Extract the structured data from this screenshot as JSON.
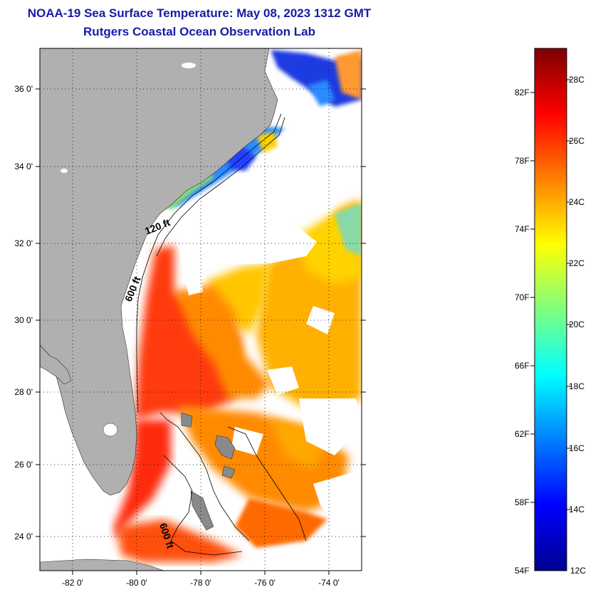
{
  "header": {
    "title": "NOAA-19 Sea Surface Temperature:  May 08, 2023 1312 GMT",
    "subtitle": "Rutgers Coastal Ocean Observation Lab"
  },
  "map": {
    "lon_range": [
      -83,
      -73
    ],
    "lat_range": [
      23,
      37
    ],
    "lon_ticks": [
      {
        "value": -82,
        "label": "-82 0'"
      },
      {
        "value": -80,
        "label": "-80 0'"
      },
      {
        "value": -78,
        "label": "-78 0'"
      },
      {
        "value": -76,
        "label": "-76 0'"
      },
      {
        "value": -74,
        "label": "-74 0'"
      }
    ],
    "lat_ticks": [
      {
        "value": 36,
        "label": "36 0'"
      },
      {
        "value": 34,
        "label": "34 0'"
      },
      {
        "value": 32,
        "label": "32 0'"
      },
      {
        "value": 30,
        "label": "30 0'"
      },
      {
        "value": 28,
        "label": "28 0'"
      },
      {
        "value": 26,
        "label": "26 0'"
      },
      {
        "value": 24,
        "label": "24 0'"
      }
    ],
    "grid": "dotted",
    "land_color": "#b0b0b0",
    "contour_labels": [
      "120 ft",
      "600 ft",
      "600 ft"
    ]
  },
  "colorbar": {
    "colors": [
      "#00008f",
      "#0000ff",
      "#007fff",
      "#00ffff",
      "#7fff7f",
      "#ffff00",
      "#ff7f00",
      "#ff0000",
      "#7f0000"
    ],
    "fahrenheit_labels": [
      "82F",
      "78F",
      "74F",
      "70F",
      "66F",
      "62F",
      "58F",
      "54F"
    ],
    "celsius_labels": [
      "28C",
      "26C",
      "24C",
      "22C",
      "20C",
      "18C",
      "16C",
      "14C",
      "12C"
    ]
  }
}
